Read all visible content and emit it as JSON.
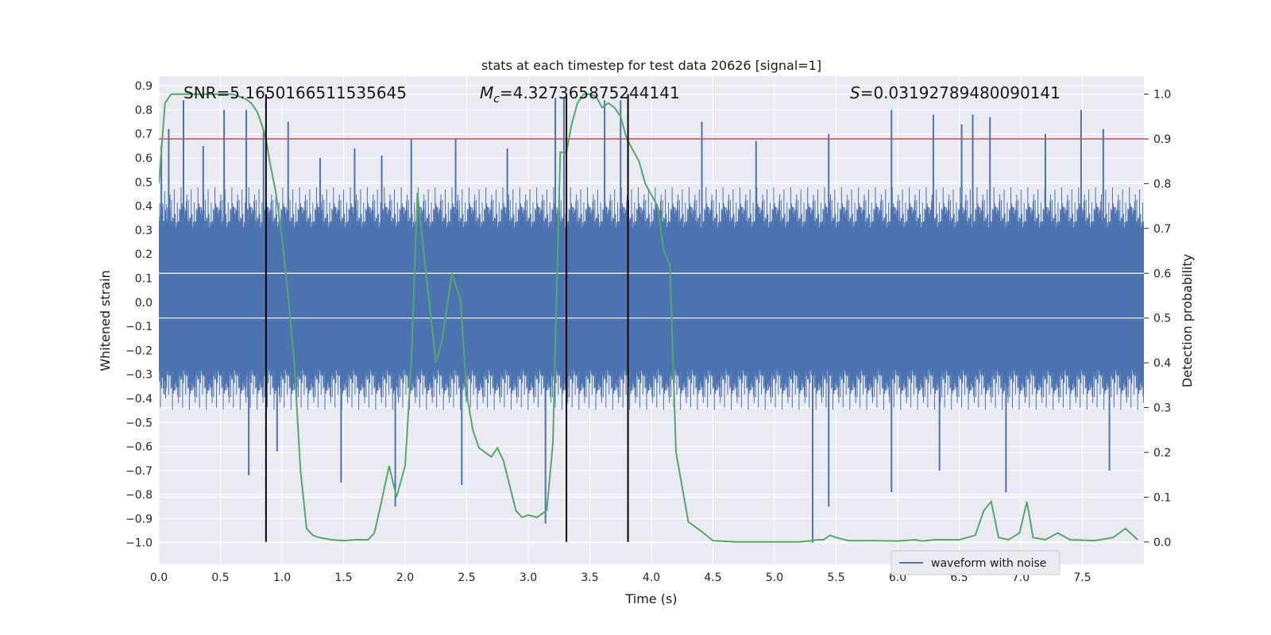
{
  "chart_data": {
    "type": "line",
    "title": "stats at each timestep for test data 20626 [signal=1]",
    "xlabel": "Time (s)",
    "ylabel": "Whitened strain",
    "y2label": "Detection probability",
    "xlim": [
      0,
      8
    ],
    "ylim": [
      -1.09,
      0.94
    ],
    "y2lim": [
      -0.05,
      1.04
    ],
    "x_ticks": [
      "0.0",
      "0.5",
      "1.0",
      "1.5",
      "2.0",
      "2.5",
      "3.0",
      "3.5",
      "4.0",
      "4.5",
      "5.0",
      "5.5",
      "6.0",
      "6.5",
      "7.0",
      "7.5"
    ],
    "y_ticks": [
      "0.9",
      "0.8",
      "0.7",
      "0.6",
      "0.5",
      "0.4",
      "0.3",
      "0.2",
      "0.1",
      "0.0",
      "−0.1",
      "−0.2",
      "−0.3",
      "−0.4",
      "−0.5",
      "−0.6",
      "−0.7",
      "−0.8",
      "−0.9",
      "−1.0"
    ],
    "y2_ticks": [
      "1.0",
      "0.9",
      "0.8",
      "0.7",
      "0.6",
      "0.5",
      "0.4",
      "0.3",
      "0.2",
      "0.1",
      "0.0"
    ],
    "grid": true,
    "legend": {
      "position": "lower-right",
      "entries": [
        "waveform with noise"
      ]
    },
    "annotations": {
      "snr": "SNR=5.1650166511535645",
      "mc_symbol": "M",
      "mc_sub": "c",
      "mc_value": "=4.327365875244141",
      "s_symbol": "S",
      "s_value": "=0.03192789480090141"
    },
    "threshold_probability": 0.9,
    "vertical_lines_x": [
      0.87,
      3.31,
      3.81
    ],
    "series": [
      {
        "name": "waveform with noise",
        "color": "#4c72b0",
        "axis": "left",
        "envelope_band": [
          -0.27,
          0.3
        ],
        "noise_amplitude": 0.42,
        "spikes": [
          {
            "x": 0.02,
            "y": 0.65
          },
          {
            "x": 0.08,
            "y": 0.72
          },
          {
            "x": 0.2,
            "y": 0.84
          },
          {
            "x": 0.36,
            "y": 0.65
          },
          {
            "x": 0.53,
            "y": 0.8
          },
          {
            "x": 0.71,
            "y": 0.8
          },
          {
            "x": 0.85,
            "y": 0.72
          },
          {
            "x": 1.05,
            "y": 0.75
          },
          {
            "x": 1.31,
            "y": 0.6
          },
          {
            "x": 1.59,
            "y": 0.64
          },
          {
            "x": 1.81,
            "y": 0.61
          },
          {
            "x": 2.05,
            "y": 0.68
          },
          {
            "x": 2.41,
            "y": 0.68
          },
          {
            "x": 2.83,
            "y": 0.64
          },
          {
            "x": 3.22,
            "y": 0.85
          },
          {
            "x": 3.29,
            "y": 0.85
          },
          {
            "x": 3.62,
            "y": 0.84
          },
          {
            "x": 3.75,
            "y": 0.84
          },
          {
            "x": 4.41,
            "y": 0.75
          },
          {
            "x": 4.85,
            "y": 0.67
          },
          {
            "x": 5.44,
            "y": 0.7
          },
          {
            "x": 5.95,
            "y": 0.8
          },
          {
            "x": 6.29,
            "y": 0.78
          },
          {
            "x": 6.52,
            "y": 0.74
          },
          {
            "x": 6.61,
            "y": 0.78
          },
          {
            "x": 6.75,
            "y": 0.77
          },
          {
            "x": 7.2,
            "y": 0.7
          },
          {
            "x": 7.49,
            "y": 0.8
          },
          {
            "x": 7.67,
            "y": 0.72
          },
          {
            "x": 0.73,
            "y": -0.72
          },
          {
            "x": 0.96,
            "y": -0.62
          },
          {
            "x": 1.48,
            "y": -0.75
          },
          {
            "x": 1.92,
            "y": -0.85
          },
          {
            "x": 2.46,
            "y": -0.76
          },
          {
            "x": 3.14,
            "y": -0.92
          },
          {
            "x": 5.31,
            "y": -1.0
          },
          {
            "x": 5.44,
            "y": -0.85
          },
          {
            "x": 5.95,
            "y": -0.79
          },
          {
            "x": 6.34,
            "y": -0.7
          },
          {
            "x": 6.88,
            "y": -0.79
          },
          {
            "x": 7.72,
            "y": -0.7
          }
        ]
      },
      {
        "name": "",
        "color": "#55a868",
        "axis": "right",
        "x": [
          0.0,
          0.05,
          0.1,
          0.2,
          0.3,
          0.4,
          0.5,
          0.6,
          0.7,
          0.75,
          0.8,
          0.85,
          0.87,
          0.9,
          0.95,
          1.0,
          1.05,
          1.1,
          1.15,
          1.2,
          1.25,
          1.3,
          1.4,
          1.5,
          1.6,
          1.7,
          1.75,
          1.8,
          1.87,
          1.93,
          2.0,
          2.05,
          2.1,
          2.15,
          2.25,
          2.3,
          2.38,
          2.45,
          2.5,
          2.55,
          2.6,
          2.7,
          2.75,
          2.8,
          2.9,
          2.95,
          3.0,
          3.07,
          3.15,
          3.2,
          3.26,
          3.31,
          3.35,
          3.4,
          3.45,
          3.5,
          3.55,
          3.6,
          3.65,
          3.7,
          3.75,
          3.8,
          3.9,
          3.95,
          4.05,
          4.1,
          4.15,
          4.2,
          4.3,
          4.4,
          4.5,
          4.7,
          4.9,
          5.2,
          5.3,
          5.35,
          5.4,
          5.45,
          5.5,
          5.6,
          5.8,
          6.0,
          6.14,
          6.2,
          6.3,
          6.5,
          6.63,
          6.7,
          6.76,
          6.82,
          6.9,
          6.99,
          7.05,
          7.1,
          7.2,
          7.3,
          7.4,
          7.6,
          7.75,
          7.85,
          7.95
        ],
        "y": [
          0.8,
          0.98,
          1.0,
          1.0,
          1.0,
          1.0,
          1.0,
          1.0,
          0.99,
          0.98,
          0.96,
          0.92,
          0.9,
          0.85,
          0.78,
          0.68,
          0.55,
          0.4,
          0.16,
          0.03,
          0.015,
          0.01,
          0.005,
          0.003,
          0.005,
          0.005,
          0.02,
          0.08,
          0.17,
          0.1,
          0.17,
          0.4,
          0.78,
          0.65,
          0.4,
          0.45,
          0.6,
          0.54,
          0.33,
          0.25,
          0.21,
          0.19,
          0.21,
          0.18,
          0.07,
          0.055,
          0.06,
          0.055,
          0.07,
          0.22,
          0.87,
          0.87,
          0.93,
          0.98,
          1.0,
          1.0,
          0.995,
          0.97,
          0.98,
          0.97,
          0.95,
          0.9,
          0.85,
          0.8,
          0.75,
          0.65,
          0.62,
          0.2,
          0.045,
          0.025,
          0.003,
          0.0,
          0.0,
          0.0,
          0.003,
          0.005,
          0.005,
          0.015,
          0.01,
          0.003,
          0.003,
          0.002,
          0.005,
          0.002,
          0.005,
          0.005,
          0.015,
          0.07,
          0.09,
          0.01,
          0.005,
          0.02,
          0.09,
          0.01,
          0.005,
          0.02,
          0.005,
          0.003,
          0.01,
          0.03,
          0.005
        ]
      }
    ]
  }
}
